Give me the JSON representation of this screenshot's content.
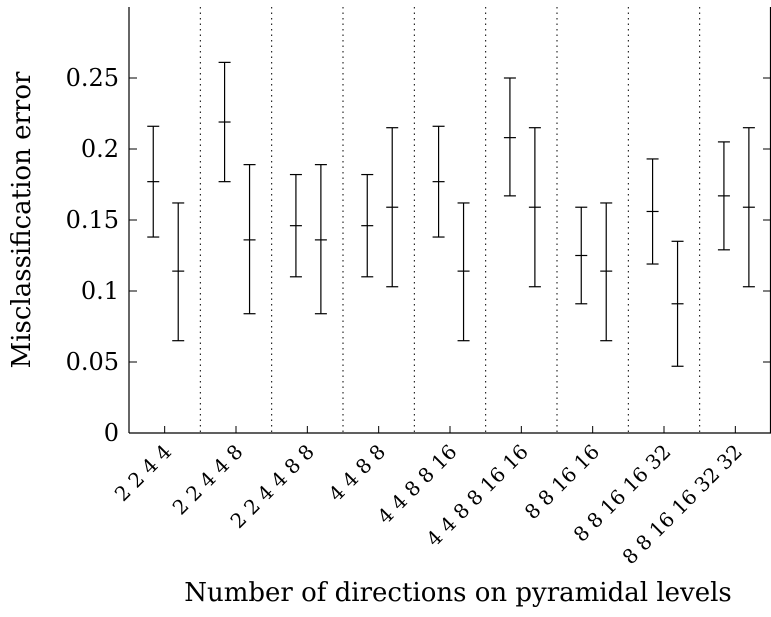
{
  "chart_data": {
    "type": "errorbar",
    "title": "",
    "xlabel": "Number of directions on pyramidal levels",
    "ylabel": "Misclassification error",
    "ylim": [
      0,
      0.3
    ],
    "yticks": [
      0,
      0.05,
      0.1,
      0.15,
      0.2,
      0.25
    ],
    "ytick_labels": [
      "0",
      "0.05",
      "0.1",
      "0.15",
      "0.2",
      "0.25"
    ],
    "grid": false,
    "group_separators": "dotted vertical lines",
    "categories": [
      "2 2 4 4",
      "2 2 4 4 8",
      "2 2 4 4 8 8",
      "4 4 8 8",
      "4 4 8 8 16",
      "4 4 8 8 16 16",
      "8 8 16 16",
      "8 8 16 16 32",
      "8 8 16 16 32 32"
    ],
    "series": [
      {
        "mean": [
          0.177,
          0.219,
          0.146,
          0.146,
          0.177,
          0.208,
          0.125,
          0.156,
          0.167
        ],
        "lower": [
          0.138,
          0.177,
          0.11,
          0.11,
          0.138,
          0.167,
          0.091,
          0.119,
          0.129
        ],
        "upper": [
          0.216,
          0.261,
          0.182,
          0.182,
          0.216,
          0.25,
          0.159,
          0.193,
          0.205
        ]
      },
      {
        "mean": [
          0.114,
          0.136,
          0.136,
          0.159,
          0.114,
          0.159,
          0.114,
          0.091,
          0.159
        ],
        "lower": [
          0.065,
          0.084,
          0.084,
          0.103,
          0.065,
          0.103,
          0.065,
          0.047,
          0.103
        ],
        "upper": [
          0.162,
          0.189,
          0.189,
          0.215,
          0.162,
          0.215,
          0.162,
          0.135,
          0.215
        ]
      }
    ]
  }
}
